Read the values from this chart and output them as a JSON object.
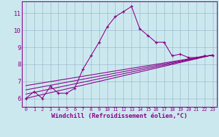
{
  "xlabel": "Windchill (Refroidissement éolien,°C)",
  "bg_color": "#cce8ef",
  "line_color": "#880088",
  "grid_color": "#99bbcc",
  "xlim": [
    -0.5,
    23.5
  ],
  "ylim": [
    5.5,
    11.7
  ],
  "yticks": [
    6,
    7,
    8,
    9,
    10,
    11
  ],
  "xticks": [
    0,
    1,
    2,
    3,
    4,
    5,
    6,
    7,
    8,
    9,
    10,
    11,
    12,
    13,
    14,
    15,
    16,
    17,
    18,
    19,
    20,
    21,
    22,
    23
  ],
  "series": [
    {
      "x": [
        0,
        1,
        2,
        3,
        4,
        5,
        6,
        7,
        8,
        9,
        10,
        11,
        12,
        13,
        14,
        15,
        16,
        17,
        18,
        19,
        20,
        21,
        22,
        23
      ],
      "y": [
        6.0,
        6.4,
        6.0,
        6.7,
        6.3,
        6.3,
        6.6,
        7.7,
        8.5,
        9.3,
        10.2,
        10.8,
        11.1,
        11.4,
        10.1,
        9.7,
        9.3,
        9.3,
        8.5,
        8.6,
        8.4,
        8.4,
        8.5,
        8.5
      ],
      "has_markers": true
    },
    {
      "x": [
        0,
        23
      ],
      "y": [
        6.0,
        8.55
      ],
      "has_markers": false
    },
    {
      "x": [
        0,
        23
      ],
      "y": [
        6.25,
        8.55
      ],
      "has_markers": false
    },
    {
      "x": [
        0,
        23
      ],
      "y": [
        6.5,
        8.55
      ],
      "has_markers": false
    },
    {
      "x": [
        0,
        23
      ],
      "y": [
        6.75,
        8.55
      ],
      "has_markers": false
    }
  ],
  "xlabel_fontsize": 6.5,
  "xlabel_fontweight": "bold",
  "tick_fontsize_x": 5.0,
  "tick_fontsize_y": 6.5
}
